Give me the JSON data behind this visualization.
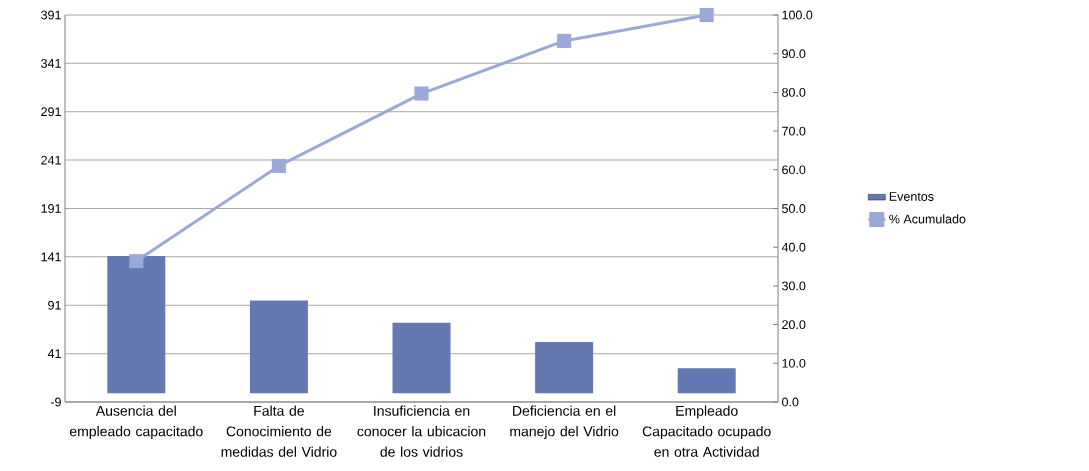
{
  "chart_data": {
    "type": "bar",
    "categories": [
      "Ausencia del empleado capacitado",
      "Falta de Conocimiento de medidas del Vidrio",
      "Insuficiencia en conocer la ubicacion de los vidrios",
      "Deficiencia en el manejo del Vidrio",
      "Empleado Capacitado ocupado en otra Actividad"
    ],
    "series": [
      {
        "name": "Eventos",
        "color": "#6479b1",
        "values": [
          142,
          96,
          73,
          53,
          26
        ]
      },
      {
        "name": "% Acumulado",
        "type": "line",
        "axis": "y2",
        "color": "#9aa9d8",
        "values": [
          36.4,
          61.0,
          79.7,
          93.3,
          100.0
        ]
      }
    ],
    "ylim": [
      -9,
      391
    ],
    "yticks": [
      -9,
      41,
      91,
      141,
      191,
      241,
      291,
      341,
      391
    ],
    "y2lim": [
      0,
      100
    ],
    "y2ticks": [
      {
        "value": 0,
        "label": "0.0"
      },
      {
        "value": 10,
        "label": "10.0"
      },
      {
        "value": 20,
        "label": "20.0"
      },
      {
        "value": 30,
        "label": "30.0"
      },
      {
        "value": 40,
        "label": "40.0"
      },
      {
        "value": 50,
        "label": "50.0"
      },
      {
        "value": 60,
        "label": "60.0"
      },
      {
        "value": 70,
        "label": "70.0"
      },
      {
        "value": 80,
        "label": "80.0"
      },
      {
        "value": 90,
        "label": "90.0"
      },
      {
        "value": 100,
        "label": "100.0"
      }
    ],
    "grid": "y",
    "legend": "right",
    "marker": "square"
  }
}
